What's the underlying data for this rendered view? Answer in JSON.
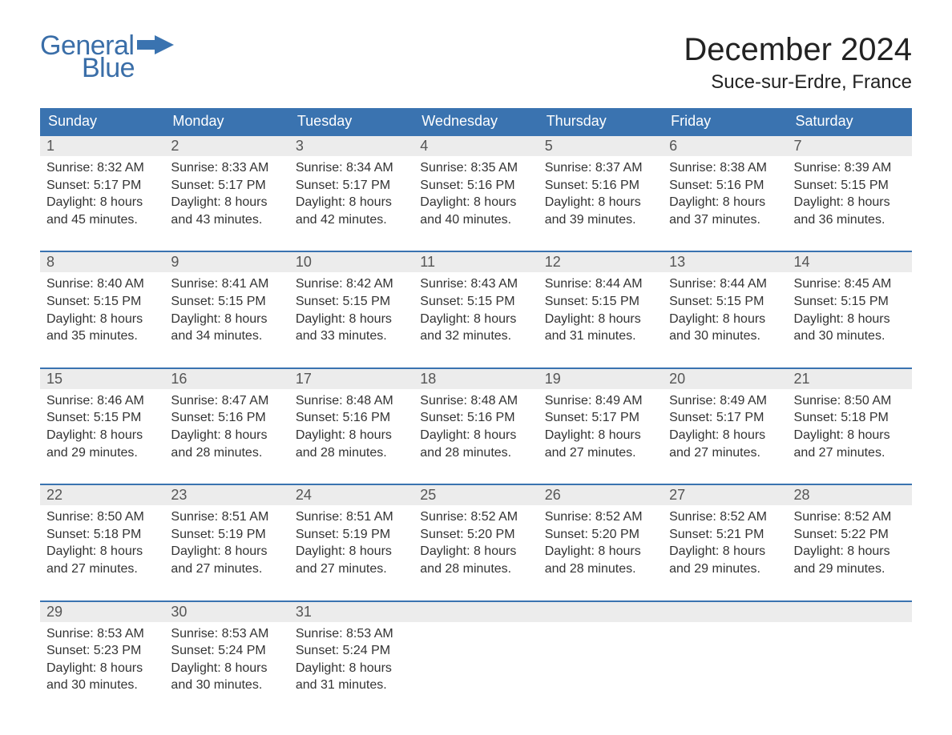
{
  "brand": {
    "part1": "General",
    "part2": "Blue",
    "color": "#3a6ea8"
  },
  "title": "December 2024",
  "location": "Suce-sur-Erdre, France",
  "colors": {
    "header_bg": "#3a73b0",
    "header_text": "#ffffff",
    "daynum_bg": "#ececec",
    "daynum_text": "#555555",
    "body_text": "#333333",
    "week_border": "#3a73b0",
    "page_bg": "#ffffff"
  },
  "typography": {
    "title_fontsize": 40,
    "location_fontsize": 24,
    "dayhead_fontsize": 18,
    "daynum_fontsize": 18,
    "cell_fontsize": 16
  },
  "day_headers": [
    "Sunday",
    "Monday",
    "Tuesday",
    "Wednesday",
    "Thursday",
    "Friday",
    "Saturday"
  ],
  "weeks": [
    [
      {
        "n": "1",
        "sunrise": "Sunrise: 8:32 AM",
        "sunset": "Sunset: 5:17 PM",
        "d1": "Daylight: 8 hours",
        "d2": "and 45 minutes."
      },
      {
        "n": "2",
        "sunrise": "Sunrise: 8:33 AM",
        "sunset": "Sunset: 5:17 PM",
        "d1": "Daylight: 8 hours",
        "d2": "and 43 minutes."
      },
      {
        "n": "3",
        "sunrise": "Sunrise: 8:34 AM",
        "sunset": "Sunset: 5:17 PM",
        "d1": "Daylight: 8 hours",
        "d2": "and 42 minutes."
      },
      {
        "n": "4",
        "sunrise": "Sunrise: 8:35 AM",
        "sunset": "Sunset: 5:16 PM",
        "d1": "Daylight: 8 hours",
        "d2": "and 40 minutes."
      },
      {
        "n": "5",
        "sunrise": "Sunrise: 8:37 AM",
        "sunset": "Sunset: 5:16 PM",
        "d1": "Daylight: 8 hours",
        "d2": "and 39 minutes."
      },
      {
        "n": "6",
        "sunrise": "Sunrise: 8:38 AM",
        "sunset": "Sunset: 5:16 PM",
        "d1": "Daylight: 8 hours",
        "d2": "and 37 minutes."
      },
      {
        "n": "7",
        "sunrise": "Sunrise: 8:39 AM",
        "sunset": "Sunset: 5:15 PM",
        "d1": "Daylight: 8 hours",
        "d2": "and 36 minutes."
      }
    ],
    [
      {
        "n": "8",
        "sunrise": "Sunrise: 8:40 AM",
        "sunset": "Sunset: 5:15 PM",
        "d1": "Daylight: 8 hours",
        "d2": "and 35 minutes."
      },
      {
        "n": "9",
        "sunrise": "Sunrise: 8:41 AM",
        "sunset": "Sunset: 5:15 PM",
        "d1": "Daylight: 8 hours",
        "d2": "and 34 minutes."
      },
      {
        "n": "10",
        "sunrise": "Sunrise: 8:42 AM",
        "sunset": "Sunset: 5:15 PM",
        "d1": "Daylight: 8 hours",
        "d2": "and 33 minutes."
      },
      {
        "n": "11",
        "sunrise": "Sunrise: 8:43 AM",
        "sunset": "Sunset: 5:15 PM",
        "d1": "Daylight: 8 hours",
        "d2": "and 32 minutes."
      },
      {
        "n": "12",
        "sunrise": "Sunrise: 8:44 AM",
        "sunset": "Sunset: 5:15 PM",
        "d1": "Daylight: 8 hours",
        "d2": "and 31 minutes."
      },
      {
        "n": "13",
        "sunrise": "Sunrise: 8:44 AM",
        "sunset": "Sunset: 5:15 PM",
        "d1": "Daylight: 8 hours",
        "d2": "and 30 minutes."
      },
      {
        "n": "14",
        "sunrise": "Sunrise: 8:45 AM",
        "sunset": "Sunset: 5:15 PM",
        "d1": "Daylight: 8 hours",
        "d2": "and 30 minutes."
      }
    ],
    [
      {
        "n": "15",
        "sunrise": "Sunrise: 8:46 AM",
        "sunset": "Sunset: 5:15 PM",
        "d1": "Daylight: 8 hours",
        "d2": "and 29 minutes."
      },
      {
        "n": "16",
        "sunrise": "Sunrise: 8:47 AM",
        "sunset": "Sunset: 5:16 PM",
        "d1": "Daylight: 8 hours",
        "d2": "and 28 minutes."
      },
      {
        "n": "17",
        "sunrise": "Sunrise: 8:48 AM",
        "sunset": "Sunset: 5:16 PM",
        "d1": "Daylight: 8 hours",
        "d2": "and 28 minutes."
      },
      {
        "n": "18",
        "sunrise": "Sunrise: 8:48 AM",
        "sunset": "Sunset: 5:16 PM",
        "d1": "Daylight: 8 hours",
        "d2": "and 28 minutes."
      },
      {
        "n": "19",
        "sunrise": "Sunrise: 8:49 AM",
        "sunset": "Sunset: 5:17 PM",
        "d1": "Daylight: 8 hours",
        "d2": "and 27 minutes."
      },
      {
        "n": "20",
        "sunrise": "Sunrise: 8:49 AM",
        "sunset": "Sunset: 5:17 PM",
        "d1": "Daylight: 8 hours",
        "d2": "and 27 minutes."
      },
      {
        "n": "21",
        "sunrise": "Sunrise: 8:50 AM",
        "sunset": "Sunset: 5:18 PM",
        "d1": "Daylight: 8 hours",
        "d2": "and 27 minutes."
      }
    ],
    [
      {
        "n": "22",
        "sunrise": "Sunrise: 8:50 AM",
        "sunset": "Sunset: 5:18 PM",
        "d1": "Daylight: 8 hours",
        "d2": "and 27 minutes."
      },
      {
        "n": "23",
        "sunrise": "Sunrise: 8:51 AM",
        "sunset": "Sunset: 5:19 PM",
        "d1": "Daylight: 8 hours",
        "d2": "and 27 minutes."
      },
      {
        "n": "24",
        "sunrise": "Sunrise: 8:51 AM",
        "sunset": "Sunset: 5:19 PM",
        "d1": "Daylight: 8 hours",
        "d2": "and 27 minutes."
      },
      {
        "n": "25",
        "sunrise": "Sunrise: 8:52 AM",
        "sunset": "Sunset: 5:20 PM",
        "d1": "Daylight: 8 hours",
        "d2": "and 28 minutes."
      },
      {
        "n": "26",
        "sunrise": "Sunrise: 8:52 AM",
        "sunset": "Sunset: 5:20 PM",
        "d1": "Daylight: 8 hours",
        "d2": "and 28 minutes."
      },
      {
        "n": "27",
        "sunrise": "Sunrise: 8:52 AM",
        "sunset": "Sunset: 5:21 PM",
        "d1": "Daylight: 8 hours",
        "d2": "and 29 minutes."
      },
      {
        "n": "28",
        "sunrise": "Sunrise: 8:52 AM",
        "sunset": "Sunset: 5:22 PM",
        "d1": "Daylight: 8 hours",
        "d2": "and 29 minutes."
      }
    ],
    [
      {
        "n": "29",
        "sunrise": "Sunrise: 8:53 AM",
        "sunset": "Sunset: 5:23 PM",
        "d1": "Daylight: 8 hours",
        "d2": "and 30 minutes."
      },
      {
        "n": "30",
        "sunrise": "Sunrise: 8:53 AM",
        "sunset": "Sunset: 5:24 PM",
        "d1": "Daylight: 8 hours",
        "d2": "and 30 minutes."
      },
      {
        "n": "31",
        "sunrise": "Sunrise: 8:53 AM",
        "sunset": "Sunset: 5:24 PM",
        "d1": "Daylight: 8 hours",
        "d2": "and 31 minutes."
      },
      null,
      null,
      null,
      null
    ]
  ]
}
